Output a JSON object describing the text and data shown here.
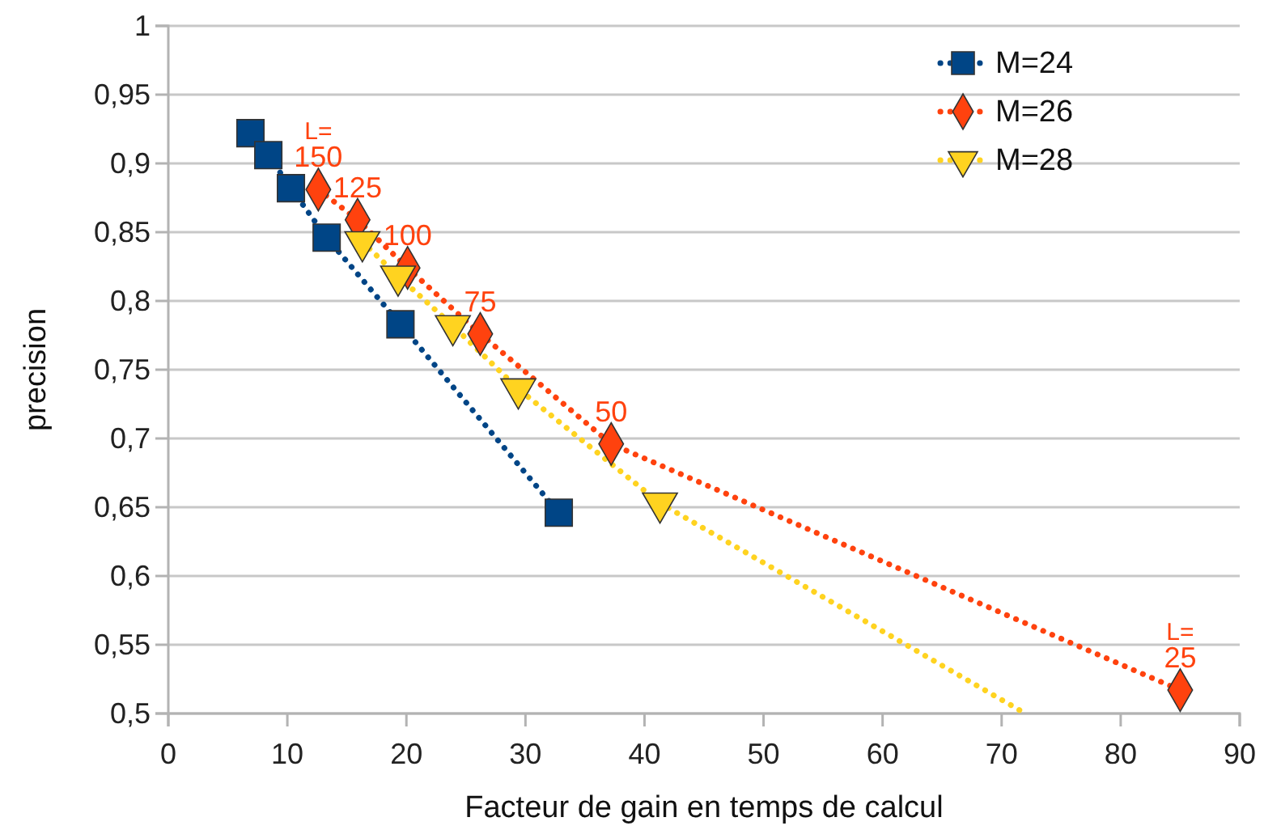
{
  "chart_data": {
    "type": "line",
    "xlabel": "Facteur de gain en temps de calcul",
    "ylabel": "precision",
    "xlim": [
      0,
      90
    ],
    "xticks": [
      0,
      10,
      20,
      30,
      40,
      50,
      60,
      70,
      80,
      90
    ],
    "ylim": [
      0.5,
      1
    ],
    "yticks": [
      {
        "value": 0.5,
        "label": "0,5"
      },
      {
        "value": 0.55,
        "label": "0,55"
      },
      {
        "value": 0.6,
        "label": "0,6"
      },
      {
        "value": 0.65,
        "label": "0,65"
      },
      {
        "value": 0.7,
        "label": "0,7"
      },
      {
        "value": 0.75,
        "label": "0,75"
      },
      {
        "value": 0.8,
        "label": "0,8"
      },
      {
        "value": 0.85,
        "label": "0,85"
      },
      {
        "value": 0.9,
        "label": "0,9"
      },
      {
        "value": 0.95,
        "label": "0,95"
      },
      {
        "value": 1,
        "label": "1"
      }
    ],
    "grid": "y",
    "legend": "top right",
    "line_style": "dotted",
    "series": [
      {
        "name": "M=24",
        "color": "#004586",
        "marker": "square",
        "x": [
          6.9,
          8.4,
          10.3,
          13.3,
          19.5,
          32.8
        ],
        "values": [
          0.922,
          0.906,
          0.882,
          0.846,
          0.783,
          0.646
        ]
      },
      {
        "name": "M=26",
        "color": "#ff420e",
        "marker": "diamond",
        "x": [
          12.6,
          15.9,
          20.1,
          26.2,
          37.2,
          85.0
        ],
        "values": [
          0.881,
          0.859,
          0.824,
          0.776,
          0.696,
          0.517
        ]
      },
      {
        "name": "M=28",
        "color": "#ffd320",
        "marker": "triangle",
        "x": [
          16.3,
          19.3,
          23.9,
          29.4,
          41.3
        ],
        "values": [
          0.843,
          0.818,
          0.782,
          0.736,
          0.653
        ]
      },
      {
        "color": "#ffd320",
        "marker": "none",
        "x": [
          41.3,
          72
        ],
        "values": [
          0.653,
          0.5
        ]
      }
    ],
    "annotations": [
      {
        "text": "L=\n150",
        "x": 12.6,
        "y": 0.881
      },
      {
        "text": "125",
        "x": 15.9,
        "y": 0.859
      },
      {
        "text": "100",
        "x": 20.1,
        "y": 0.824
      },
      {
        "text": "75",
        "x": 26.2,
        "y": 0.776
      },
      {
        "text": "50",
        "x": 37.2,
        "y": 0.696
      },
      {
        "text": "L=\n25",
        "x": 85.0,
        "y": 0.517
      }
    ]
  }
}
